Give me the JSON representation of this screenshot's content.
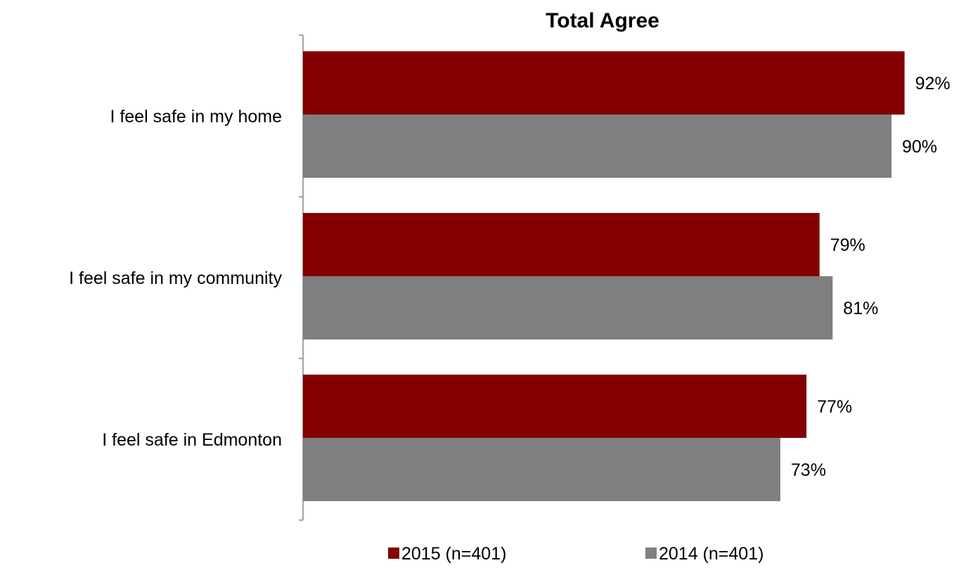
{
  "chart_data": {
    "type": "bar",
    "orientation": "horizontal",
    "title": "Total Agree",
    "categories": [
      "I feel safe in my home",
      "I feel safe in my community",
      "I feel safe in Edmonton"
    ],
    "series": [
      {
        "name": "2015 (n=401)",
        "values": [
          92,
          79,
          77
        ],
        "labels": [
          "92%",
          "79%",
          "77%"
        ],
        "color": "#840000"
      },
      {
        "name": "2014 (n=401)",
        "values": [
          90,
          81,
          73
        ],
        "labels": [
          "90%",
          "81%",
          "73%"
        ],
        "color": "#7f7f7f"
      }
    ],
    "xlim": [
      0,
      100
    ],
    "grid": false,
    "legend_position": "bottom"
  }
}
